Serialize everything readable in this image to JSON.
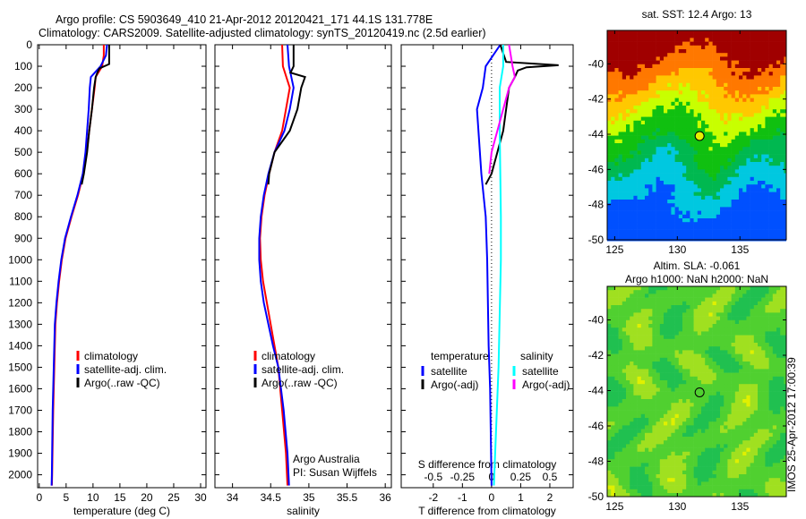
{
  "title_line1": "Argo profile: CS 5903649_410 21-Apr-2012 20120421_171 44.1S 131.778E",
  "title_line2": "Climatology: CARS2009. Satellite-adjusted climatology: synTS_20120419.nc (2.5d earlier)",
  "colors": {
    "climatology": "#ff0000",
    "satellite": "#0000ff",
    "argo": "#000000",
    "sal_satellite": "#00ffff",
    "sal_argo": "#ff00ff"
  },
  "chart_data": [
    {
      "type": "line",
      "xlabel": "temperature (deg C)",
      "ylabel": "",
      "xlim": [
        -0.3,
        31
      ],
      "ylim": [
        2060,
        0
      ],
      "xticks": [
        0,
        5,
        10,
        15,
        20,
        25,
        30
      ],
      "yticks": [
        0,
        100,
        200,
        300,
        400,
        500,
        600,
        700,
        800,
        900,
        1000,
        1100,
        1200,
        1300,
        1400,
        1500,
        1600,
        1700,
        1800,
        1900,
        2000
      ],
      "legend": [
        "climatology",
        "satellite-adj. clim.",
        "Argo(..raw -QC)"
      ],
      "series": [
        {
          "name": "climatology",
          "depth": [
            0,
            50,
            100,
            150,
            200,
            300,
            400,
            500,
            600,
            700,
            800,
            900,
            1000,
            1100,
            1200,
            1300,
            1500,
            1700,
            2000,
            2050
          ],
          "values": [
            12,
            12,
            11.7,
            10.5,
            10.3,
            9.8,
            9.3,
            8.8,
            8.2,
            7.2,
            6,
            4.9,
            4.2,
            3.7,
            3.3,
            3,
            2.8,
            2.6,
            2.4,
            2.35
          ]
        },
        {
          "name": "satellite-adj. clim.",
          "depth": [
            0,
            50,
            100,
            150,
            200,
            300,
            400,
            500,
            600,
            700,
            800,
            900,
            1000,
            1100,
            1200,
            1300,
            1500,
            1700,
            2000,
            2050
          ],
          "values": [
            12.6,
            12.4,
            11.4,
            9.6,
            9.4,
            9.2,
            8.9,
            8.6,
            8.1,
            7.1,
            5.9,
            4.8,
            4.1,
            3.6,
            3.2,
            2.9,
            2.7,
            2.5,
            2.35,
            2.3
          ]
        },
        {
          "name": "Argo(..raw -QC)",
          "depth": [
            0,
            50,
            90,
            110,
            130,
            150,
            200,
            300,
            400,
            500,
            600,
            650
          ],
          "values": [
            13,
            13,
            13,
            11.2,
            10.8,
            10.5,
            10.2,
            9.8,
            9.3,
            8.9,
            8.3,
            7.9
          ]
        }
      ]
    },
    {
      "type": "line",
      "xlabel": "salinity",
      "xlim": [
        33.77,
        36.08
      ],
      "ylim": [
        2060,
        0
      ],
      "xticks": [
        34,
        34.5,
        35,
        35.5,
        36
      ],
      "legend": [
        "climatology",
        "satellite-adj. clim.",
        "Argo(..raw -QC)"
      ],
      "annotations": [
        "Argo Australia",
        "PI: Susan Wijffels"
      ],
      "series": [
        {
          "name": "climatology",
          "depth": [
            0,
            100,
            200,
            300,
            400,
            500,
            600,
            700,
            800,
            900,
            1000,
            1100,
            1200,
            1300,
            1400,
            1500,
            1700,
            1900,
            2050
          ],
          "values": [
            34.65,
            34.66,
            34.75,
            34.7,
            34.65,
            34.55,
            34.48,
            34.42,
            34.38,
            34.36,
            34.37,
            34.4,
            34.45,
            34.5,
            34.55,
            34.6,
            34.65,
            34.7,
            34.72
          ]
        },
        {
          "name": "satellite-adj. clim.",
          "depth": [
            0,
            100,
            200,
            300,
            400,
            500,
            600,
            700,
            800,
            900,
            1000,
            1100,
            1200,
            1300,
            1400,
            1500,
            1700,
            1900,
            2050
          ],
          "values": [
            34.72,
            34.74,
            34.8,
            34.75,
            34.68,
            34.55,
            34.47,
            34.41,
            34.37,
            34.35,
            34.35,
            34.37,
            34.41,
            34.47,
            34.53,
            34.6,
            34.67,
            34.72,
            34.74
          ]
        },
        {
          "name": "Argo(..raw -QC)",
          "depth": [
            0,
            100,
            130,
            150,
            200,
            300,
            400,
            500,
            600,
            650
          ],
          "values": [
            34.8,
            34.8,
            34.76,
            34.95,
            34.9,
            34.85,
            34.75,
            34.55,
            34.48,
            34.47
          ]
        }
      ]
    },
    {
      "type": "line",
      "xlabel": "T difference from climatology",
      "x2label": "S difference from climatology",
      "xlim": [
        -3.1,
        2.8
      ],
      "x2lim": [
        -0.775,
        0.7
      ],
      "ylim": [
        2060,
        0
      ],
      "xticks": [
        -2,
        -1,
        0,
        1,
        2
      ],
      "x2ticks": [
        "-0.5",
        "-0.25",
        "0",
        "0.25",
        "0.5"
      ],
      "legend": {
        "temperature": [
          "satellite",
          "Argo(-adj)"
        ],
        "salinity": [
          "satellite",
          "Argo(-adj)"
        ]
      },
      "legend_headers": [
        "temperature",
        "salinity"
      ],
      "series": [
        {
          "name": "T satellite",
          "axis": "T",
          "depth": [
            0,
            100,
            200,
            300,
            400,
            600,
            800,
            1000,
            1400,
            1600,
            2050
          ],
          "values": [
            0.3,
            -0.2,
            -0.3,
            -0.5,
            -0.45,
            -0.35,
            -0.2,
            -0.15,
            -0.1,
            -0.05,
            0
          ]
        },
        {
          "name": "T Argo(-adj)",
          "axis": "T",
          "depth": [
            0,
            80,
            95,
            105,
            120,
            150,
            200,
            300,
            400,
            500,
            600,
            650
          ],
          "values": [
            0.3,
            0.5,
            2.3,
            1.2,
            0.9,
            0.8,
            0.6,
            0.5,
            0.4,
            0.2,
            0,
            -0.2
          ]
        },
        {
          "name": "S satellite",
          "axis": "S",
          "depth": [
            0,
            100,
            200,
            400,
            800,
            1000,
            1500,
            2050
          ],
          "values": [
            0.1,
            0.1,
            0.07,
            0.07,
            0.08,
            0.08,
            0.06,
            0.02
          ]
        },
        {
          "name": "S Argo(-adj)",
          "axis": "S",
          "depth": [
            0,
            100,
            150,
            200,
            300,
            500,
            600
          ],
          "values": [
            0.15,
            0.18,
            0.2,
            0.15,
            0.1,
            0,
            -0.02
          ]
        }
      ]
    },
    {
      "type": "heatmap",
      "title": "sat. SST: 12.4 Argo: 13",
      "xlim": [
        124.4,
        138.7
      ],
      "ylim": [
        -50,
        -38.1
      ],
      "xticks": [
        125,
        130,
        135
      ],
      "yticks": [
        -40,
        -42,
        -44,
        -46,
        -48,
        -50
      ],
      "point": {
        "lon": 131.778,
        "lat": -44.1
      }
    },
    {
      "type": "heatmap",
      "title": "Altim. SLA: -0.061",
      "subtitle": "Argo h1000: NaN h2000: NaN",
      "xlim": [
        124.4,
        138.7
      ],
      "ylim": [
        -50,
        -38.1
      ],
      "xticks": [
        125,
        130,
        135
      ],
      "yticks": [
        -40,
        -42,
        -44,
        -46,
        -48,
        -50
      ],
      "point": {
        "lon": 131.778,
        "lat": -44.1
      }
    }
  ],
  "side_label": "IMOS 25-Apr-2012 17:00:39"
}
